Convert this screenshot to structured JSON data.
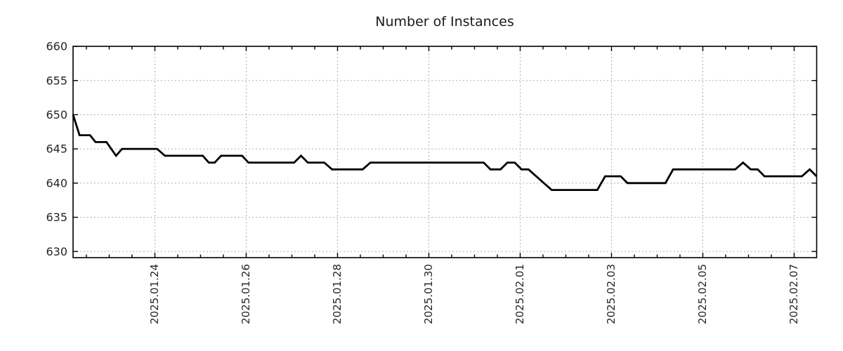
{
  "chart_data": {
    "type": "line",
    "title": "Number of Instances",
    "xlabel": "",
    "ylabel": "",
    "legend_position": "none",
    "grid": true,
    "background_color": "#ffffff",
    "line_color": "#000000",
    "grid_color": "#b0b0b0",
    "axis_color": "#000000",
    "x_unit": "days since 2025-01-22 00:00",
    "xlim": [
      0.208,
      16.493
    ],
    "ylim": [
      629.1,
      660
    ],
    "y_ticks": [
      630,
      635,
      640,
      645,
      650,
      655,
      660
    ],
    "x_major_ticks": [
      {
        "t": 2,
        "label": "2025.01.24"
      },
      {
        "t": 4,
        "label": "2025.01.26"
      },
      {
        "t": 6,
        "label": "2025.01.28"
      },
      {
        "t": 8,
        "label": "2025.01.30"
      },
      {
        "t": 10,
        "label": "2025.02.01"
      },
      {
        "t": 12,
        "label": "2025.02.03"
      },
      {
        "t": 14,
        "label": "2025.02.05"
      },
      {
        "t": 16,
        "label": "2025.02.07"
      }
    ],
    "x_minor_tick_interval": 0.5,
    "series": [
      {
        "name": "instances",
        "points": [
          [
            0.208,
            650
          ],
          [
            0.35,
            647
          ],
          [
            0.58,
            647
          ],
          [
            0.7,
            646
          ],
          [
            0.94,
            646
          ],
          [
            1.15,
            644
          ],
          [
            1.28,
            645
          ],
          [
            2.05,
            645
          ],
          [
            2.22,
            644
          ],
          [
            3.05,
            644
          ],
          [
            3.18,
            643
          ],
          [
            3.31,
            643
          ],
          [
            3.45,
            644
          ],
          [
            3.91,
            644
          ],
          [
            4.05,
            643
          ],
          [
            5.05,
            643
          ],
          [
            5.2,
            644
          ],
          [
            5.35,
            643
          ],
          [
            5.71,
            643
          ],
          [
            5.88,
            642
          ],
          [
            6.55,
            642
          ],
          [
            6.72,
            643
          ],
          [
            9.2,
            643
          ],
          [
            9.35,
            642
          ],
          [
            9.57,
            642
          ],
          [
            9.72,
            643
          ],
          [
            9.88,
            643
          ],
          [
            10.03,
            642
          ],
          [
            10.18,
            642
          ],
          [
            10.69,
            639
          ],
          [
            11.69,
            639
          ],
          [
            11.86,
            641
          ],
          [
            12.2,
            641
          ],
          [
            12.35,
            640
          ],
          [
            13.18,
            640
          ],
          [
            13.35,
            642
          ],
          [
            14.71,
            642
          ],
          [
            14.88,
            643
          ],
          [
            15.05,
            642
          ],
          [
            15.2,
            642
          ],
          [
            15.35,
            641
          ],
          [
            16.17,
            641
          ],
          [
            16.34,
            642
          ],
          [
            16.49,
            641
          ]
        ]
      }
    ]
  }
}
